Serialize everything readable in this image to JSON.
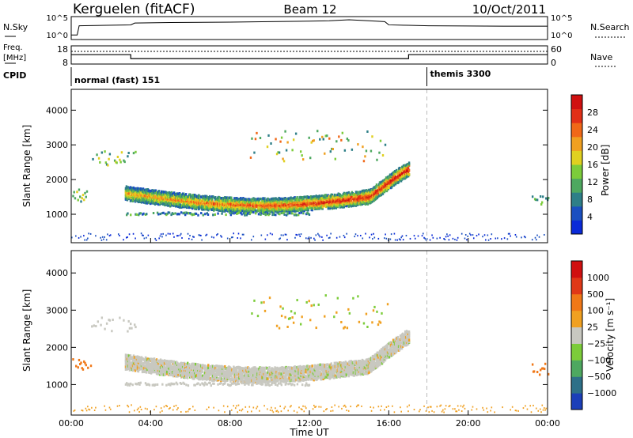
{
  "header": {
    "station": "Kerguelen (fitACF)",
    "beam": "Beam 12",
    "date": "10/Oct/2011"
  },
  "colors": {
    "line": "#000000",
    "dashed_marker": "#bbbbbb",
    "background": "#ffffff"
  },
  "panels": {
    "nsky": {
      "left_label": "N.Sky",
      "left_ticks": [
        "10^5",
        "10^0"
      ],
      "right_ticks": [
        "10^5",
        "10^0"
      ],
      "right_label": "N.Search"
    },
    "freq": {
      "left_label_1": "Freq.",
      "left_label_2": "[MHz]",
      "left_ticks": [
        "18",
        "8"
      ],
      "right_ticks": [
        "60",
        "0"
      ],
      "right_label": "Nave"
    },
    "cpid": {
      "label": "CPID",
      "modes": [
        {
          "name": "normal (fast) 151",
          "start_hour": 0
        },
        {
          "name": "themis 3300",
          "start_hour": 18
        }
      ]
    },
    "xaxis": {
      "label": "Time UT",
      "ticks": [
        "00:00",
        "04:00",
        "08:00",
        "12:00",
        "16:00",
        "20:00",
        "00:00"
      ]
    }
  },
  "chart_data": [
    {
      "type": "line",
      "title": "N.Sky / N.Search",
      "x": [
        0,
        0.3,
        0.4,
        3,
        3.2,
        5,
        8,
        10,
        12,
        13,
        14,
        15,
        15.8,
        16,
        17,
        18,
        20,
        22,
        24
      ],
      "series": [
        {
          "name": "N.Sky",
          "values": [
            1,
            1,
            3.0,
            3.2,
            3.6,
            3.7,
            3.8,
            3.9,
            4.0,
            4.1,
            4.3,
            4.1,
            3.9,
            3.2,
            3.1,
            3.0,
            2.95,
            2.9,
            2.9
          ]
        }
      ],
      "ylim": [
        0,
        5
      ],
      "y_scale": "log"
    },
    {
      "type": "line",
      "title": "Freq / Nave",
      "x": [
        0,
        3,
        3,
        17,
        17,
        24
      ],
      "series": [
        {
          "name": "Freq.",
          "values": [
            13.2,
            13.2,
            11.0,
            11.0,
            13.2,
            13.2
          ]
        }
      ],
      "ylim": [
        8,
        18
      ]
    },
    {
      "type": "heatmap",
      "title": "",
      "xlabel": "Time UT",
      "ylabel": "Slant Range [km]",
      "x_ticks": [
        "00:00",
        "04:00",
        "08:00",
        "12:00",
        "16:00",
        "20:00",
        "00:00"
      ],
      "y_ticks": [
        1000,
        2000,
        3000,
        4000
      ],
      "xlim": [
        0,
        24
      ],
      "ylim": [
        180,
        4600
      ],
      "colorbar": {
        "label": "Power [dB]",
        "ticks": [
          "4",
          "8",
          "12",
          "16",
          "20",
          "24",
          "28"
        ],
        "colors": [
          "#0a2ad8",
          "#1a4fc0",
          "#2e7f88",
          "#4ea860",
          "#7ccc3a",
          "#e0d020",
          "#f0a020",
          "#f06818",
          "#e23018",
          "#d01010"
        ]
      }
    },
    {
      "type": "heatmap",
      "title": "",
      "xlabel": "Time UT",
      "ylabel": "Slant Range [km]",
      "x_ticks": [
        "00:00",
        "04:00",
        "08:00",
        "12:00",
        "16:00",
        "20:00",
        "00:00"
      ],
      "y_ticks": [
        1000,
        2000,
        3000,
        4000
      ],
      "xlim": [
        0,
        24
      ],
      "ylim": [
        180,
        4600
      ],
      "colorbar": {
        "label": "Velocity [m s⁻¹]",
        "ticks": [
          "1000",
          "500",
          "100",
          "25",
          "−25",
          "−100",
          "−500",
          "−1000"
        ],
        "colors": [
          "#1c3fb8",
          "#2e7088",
          "#4ea860",
          "#7ccc3a",
          "#c8c8c0",
          "#f0a020",
          "#f07818",
          "#e03818",
          "#d01010"
        ]
      }
    }
  ]
}
